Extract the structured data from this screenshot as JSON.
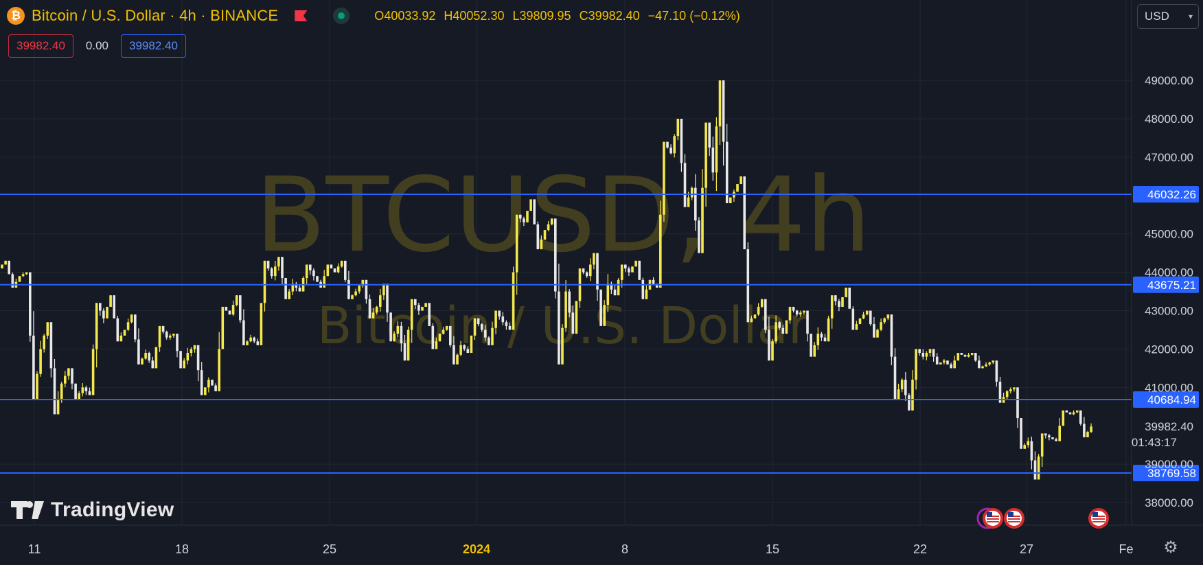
{
  "header": {
    "coin_icon": "bitcoin-icon",
    "title": "Bitcoin / U.S. Dollar · 4h · BINANCE",
    "ohlc": [
      {
        "key": "O",
        "value": "40033.92"
      },
      {
        "key": "H",
        "value": "40052.30"
      },
      {
        "key": "L",
        "value": "39809.95"
      },
      {
        "key": "C",
        "value": "39982.40"
      }
    ],
    "change": "−47.10 (−0.12%)"
  },
  "price_row": {
    "bid": "39982.40",
    "spread": "0.00",
    "ask": "39982.40"
  },
  "currency": "USD",
  "logo_text": "TradingView",
  "colors": {
    "background": "#161a25",
    "grid": "#232733",
    "candle": "#f5e84a",
    "wick_up": "#f5e84a",
    "wick_down": "#e8e8e8",
    "level_line": "#2962ff",
    "axis_text": "#d1d4dc",
    "watermark": "#4a4520"
  },
  "chart_data": {
    "type": "candlestick",
    "watermark": {
      "symbol": "BTCUSD, 4h",
      "name": "Bitcoin / U.S. Dollar"
    },
    "ylim": [
      37500,
      50200
    ],
    "y_ticks": [
      "38000.00",
      "39000.00",
      "41000.00",
      "42000.00",
      "43000.00",
      "44000.00",
      "45000.00",
      "47000.00",
      "48000.00",
      "49000.00"
    ],
    "x_ticks": [
      "11",
      "18",
      "25",
      "2024",
      "8",
      "15",
      "22",
      "27",
      "Fe"
    ],
    "horizontal_levels": [
      "46032.26",
      "43675.21",
      "40684.94",
      "38769.58"
    ],
    "last_price": {
      "value": "39982.40",
      "countdown": "01:43:17"
    },
    "events": [
      "us-flag-icon",
      "us-flag-icon",
      "us-flag-icon"
    ],
    "days": [
      {
        "o": 44100,
        "h": 44300,
        "l": 43600,
        "c": 43900
      },
      {
        "o": 43900,
        "h": 44000,
        "l": 40700,
        "c": 42000
      },
      {
        "o": 42000,
        "h": 42700,
        "l": 40300,
        "c": 41100
      },
      {
        "o": 41100,
        "h": 41500,
        "l": 40700,
        "c": 41000
      },
      {
        "o": 41000,
        "h": 43200,
        "l": 40800,
        "c": 42800
      },
      {
        "o": 42800,
        "h": 43400,
        "l": 42200,
        "c": 42500
      },
      {
        "o": 42500,
        "h": 42900,
        "l": 41600,
        "c": 41900
      },
      {
        "o": 41900,
        "h": 42600,
        "l": 41500,
        "c": 42300
      },
      {
        "o": 42300,
        "h": 42400,
        "l": 41500,
        "c": 41900
      },
      {
        "o": 41900,
        "h": 42100,
        "l": 40800,
        "c": 41200
      },
      {
        "o": 41200,
        "h": 43100,
        "l": 40900,
        "c": 42900
      },
      {
        "o": 42900,
        "h": 43400,
        "l": 42100,
        "c": 42300
      },
      {
        "o": 42300,
        "h": 44300,
        "l": 42100,
        "c": 43900
      },
      {
        "o": 43900,
        "h": 44400,
        "l": 43300,
        "c": 43700
      },
      {
        "o": 43700,
        "h": 44200,
        "l": 43500,
        "c": 43900
      },
      {
        "o": 43900,
        "h": 44200,
        "l": 43600,
        "c": 44000
      },
      {
        "o": 44000,
        "h": 44300,
        "l": 43300,
        "c": 43500
      },
      {
        "o": 43500,
        "h": 43800,
        "l": 42800,
        "c": 43100
      },
      {
        "o": 43100,
        "h": 43700,
        "l": 42200,
        "c": 42600
      },
      {
        "o": 42600,
        "h": 43300,
        "l": 41700,
        "c": 43000
      },
      {
        "o": 43000,
        "h": 43200,
        "l": 42000,
        "c": 42400
      },
      {
        "o": 42400,
        "h": 42600,
        "l": 41600,
        "c": 42100
      },
      {
        "o": 42100,
        "h": 42800,
        "l": 41900,
        "c": 42500
      },
      {
        "o": 42500,
        "h": 43000,
        "l": 42100,
        "c": 42700
      },
      {
        "o": 42700,
        "h": 45500,
        "l": 42500,
        "c": 45300
      },
      {
        "o": 45300,
        "h": 45900,
        "l": 44600,
        "c": 45100
      },
      {
        "o": 45100,
        "h": 45400,
        "l": 41600,
        "c": 43500
      },
      {
        "o": 43500,
        "h": 44100,
        "l": 42400,
        "c": 43900
      },
      {
        "o": 43900,
        "h": 44500,
        "l": 42600,
        "c": 43700
      },
      {
        "o": 43700,
        "h": 44200,
        "l": 43400,
        "c": 44000
      },
      {
        "o": 44000,
        "h": 44300,
        "l": 43300,
        "c": 43800
      },
      {
        "o": 43800,
        "h": 47400,
        "l": 43600,
        "c": 47100
      },
      {
        "o": 47100,
        "h": 48000,
        "l": 45700,
        "c": 46200
      },
      {
        "o": 46200,
        "h": 47900,
        "l": 44500,
        "c": 46600
      },
      {
        "o": 46600,
        "h": 49000,
        "l": 45800,
        "c": 46100
      },
      {
        "o": 46100,
        "h": 46500,
        "l": 42700,
        "c": 42900
      },
      {
        "o": 42900,
        "h": 43300,
        "l": 41700,
        "c": 42700
      },
      {
        "o": 42700,
        "h": 43100,
        "l": 42400,
        "c": 42900
      },
      {
        "o": 42900,
        "h": 43000,
        "l": 41800,
        "c": 42400
      },
      {
        "o": 42400,
        "h": 43400,
        "l": 42200,
        "c": 43100
      },
      {
        "o": 43100,
        "h": 43600,
        "l": 42500,
        "c": 42800
      },
      {
        "o": 42800,
        "h": 43000,
        "l": 42300,
        "c": 42700
      },
      {
        "o": 42700,
        "h": 42900,
        "l": 40700,
        "c": 41200
      },
      {
        "o": 41200,
        "h": 42000,
        "l": 40400,
        "c": 41800
      },
      {
        "o": 41800,
        "h": 42000,
        "l": 41600,
        "c": 41700
      },
      {
        "o": 41700,
        "h": 41900,
        "l": 41500,
        "c": 41800
      },
      {
        "o": 41800,
        "h": 41900,
        "l": 41500,
        "c": 41600
      },
      {
        "o": 41600,
        "h": 41700,
        "l": 40600,
        "c": 40900
      },
      {
        "o": 40900,
        "h": 41000,
        "l": 39400,
        "c": 39600
      },
      {
        "o": 39600,
        "h": 39800,
        "l": 38600,
        "c": 39700
      },
      {
        "o": 39700,
        "h": 40400,
        "l": 39600,
        "c": 40300
      },
      {
        "o": 40300,
        "h": 40400,
        "l": 39700,
        "c": 39982
      }
    ]
  }
}
